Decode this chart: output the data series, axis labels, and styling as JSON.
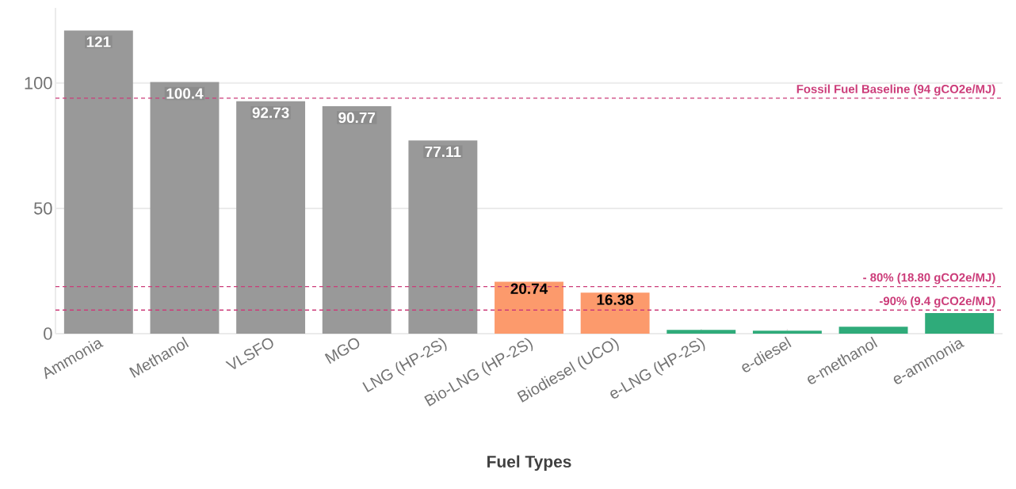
{
  "chart_data": {
    "type": "bar",
    "xlabel": "Fuel Types",
    "categories": [
      "Ammonia",
      "Methanol",
      "VLSFO",
      "MGO",
      "LNG (HP-2S)",
      "Bio-LNG (HP-2S)",
      "Biodiesel (UCO)",
      "e-LNG (HP-2S)",
      "e-diesel",
      "e-methanol",
      "e-ammonia"
    ],
    "values": [
      121,
      100.4,
      92.73,
      90.77,
      77.11,
      20.74,
      16.38,
      1.5,
      1.2,
      2.8,
      8.2
    ],
    "colors": [
      "#999999",
      "#999999",
      "#999999",
      "#999999",
      "#999999",
      "#fc9a6c",
      "#fc9a6c",
      "#2fab7a",
      "#2fab7a",
      "#2fab7a",
      "#2fab7a"
    ],
    "value_labels": [
      "121",
      "100.4",
      "92.73",
      "90.77",
      "77.11",
      "20.74",
      "16.38",
      null,
      null,
      null,
      null
    ],
    "ylim": [
      0,
      130
    ],
    "yticks": [
      0,
      50,
      100
    ],
    "grid": "y",
    "ref_lines": [
      {
        "axis": "y",
        "value": 94,
        "label": "Fossil Fuel Baseline (94 gCO2e/MJ)",
        "color": "#cc3d7a",
        "line_style": "dashed"
      },
      {
        "axis": "y",
        "value": 18.8,
        "label": "- 80% (18.80 gCO2e/MJ)",
        "color": "#cc3d7a",
        "line_style": "dashed"
      },
      {
        "axis": "y",
        "value": 9.4,
        "label": "-90% (9.4 gCO2e/MJ)",
        "color": "#cc3d7a",
        "line_style": "dashed"
      }
    ]
  }
}
